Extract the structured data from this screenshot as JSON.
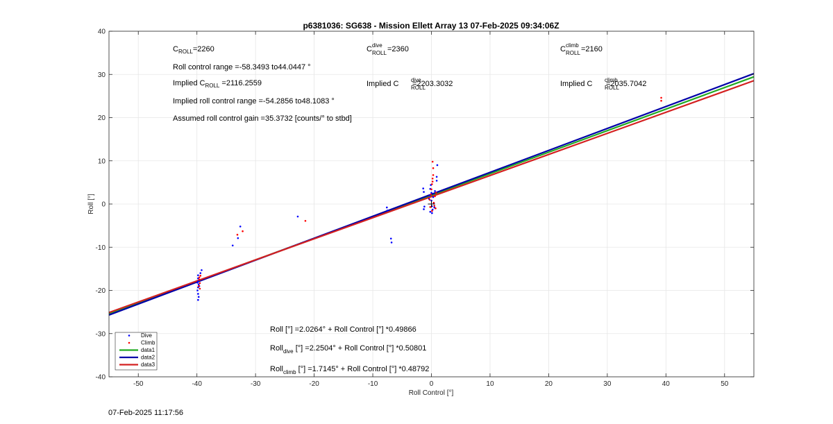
{
  "timestamp": "07-Feb-2025 11:17:56",
  "chart_data": {
    "type": "scatter",
    "title": "p6381036: SG638 - Mission Ellett Array 13 07-Feb-2025 09:34:06Z",
    "xlabel": "Roll Control [°]",
    "ylabel": "Roll [°]",
    "xlim": [
      -55,
      55
    ],
    "ylim": [
      -40,
      40
    ],
    "xticks": [
      -50,
      -40,
      -30,
      -20,
      -10,
      0,
      10,
      20,
      30,
      40,
      50
    ],
    "yticks": [
      -40,
      -30,
      -20,
      -10,
      0,
      10,
      20,
      30,
      40
    ],
    "grid": true,
    "legend": {
      "placement": "bottom-left",
      "entries": [
        {
          "name": "Dive",
          "kind": "marker",
          "color": "#0000ff"
        },
        {
          "name": "Climb",
          "kind": "marker",
          "color": "#ff0000"
        },
        {
          "name": "data1",
          "kind": "line",
          "color": "#22aa22"
        },
        {
          "name": "data2",
          "kind": "line",
          "color": "#0000a8"
        },
        {
          "name": "data3",
          "kind": "line",
          "color": "#d42020"
        }
      ]
    },
    "series": [
      {
        "name": "Dive",
        "color": "#0000ff",
        "points": [
          [
            -39.8,
            -16.5
          ],
          [
            -39.8,
            -17.2
          ],
          [
            -39.8,
            -17.9
          ],
          [
            -39.7,
            -18.6
          ],
          [
            -39.8,
            -19.3
          ],
          [
            -39.9,
            -20.0
          ],
          [
            -39.8,
            -20.8
          ],
          [
            -39.7,
            -21.5
          ],
          [
            -39.8,
            -22.2
          ],
          [
            -39.4,
            -16.0
          ],
          [
            -39.2,
            -15.3
          ],
          [
            -39.6,
            -19.0
          ],
          [
            -39.9,
            -18.2
          ],
          [
            -33.9,
            -9.6
          ],
          [
            -33.0,
            -7.9
          ],
          [
            -32.6,
            -5.2
          ],
          [
            -22.8,
            -2.9
          ],
          [
            -7.6,
            -0.8
          ],
          [
            -7.5,
            -1.5
          ],
          [
            -6.9,
            -8.0
          ],
          [
            -6.8,
            -8.9
          ],
          [
            -1.4,
            3.6
          ],
          [
            -1.3,
            2.8
          ],
          [
            -1.2,
            -0.6
          ],
          [
            -1.3,
            -1.2
          ],
          [
            -0.4,
            1.2
          ],
          [
            -0.3,
            2.0
          ],
          [
            -0.2,
            3.5
          ],
          [
            -0.1,
            4.4
          ],
          [
            0.0,
            2.6
          ],
          [
            0.0,
            0.8
          ],
          [
            0.1,
            -0.5
          ],
          [
            0.2,
            -1.3
          ],
          [
            0.3,
            1.6
          ],
          [
            0.4,
            0.2
          ],
          [
            0.5,
            -0.8
          ],
          [
            0.6,
            3.0
          ],
          [
            0.9,
            5.4
          ],
          [
            0.9,
            6.3
          ],
          [
            1.0,
            9.0
          ],
          [
            -0.2,
            -1.8
          ],
          [
            0.1,
            -2.1
          ]
        ]
      },
      {
        "name": "Climb",
        "color": "#ff0000",
        "points": [
          [
            -39.6,
            -17.5
          ],
          [
            -39.5,
            -18.3
          ],
          [
            -39.7,
            -19.0
          ],
          [
            -39.5,
            -19.6
          ],
          [
            -39.6,
            -17.0
          ],
          [
            -39.4,
            -16.6
          ],
          [
            -33.1,
            -7.1
          ],
          [
            -32.2,
            -6.3
          ],
          [
            -21.5,
            -3.9
          ],
          [
            -0.3,
            1.0
          ],
          [
            -0.1,
            2.2
          ],
          [
            0.0,
            3.4
          ],
          [
            0.1,
            4.6
          ],
          [
            0.2,
            5.2
          ],
          [
            0.2,
            5.9
          ],
          [
            0.3,
            6.7
          ],
          [
            0.3,
            8.3
          ],
          [
            0.2,
            9.8
          ],
          [
            0.4,
            0.3
          ],
          [
            0.5,
            -0.4
          ],
          [
            0.6,
            1.8
          ],
          [
            0.7,
            -1.0
          ],
          [
            0.8,
            2.6
          ],
          [
            -0.2,
            -0.7
          ],
          [
            0.1,
            -1.6
          ],
          [
            39.2,
            24.6
          ],
          [
            39.2,
            23.9
          ]
        ]
      }
    ],
    "fit_lines": [
      {
        "name": "data1",
        "color": "#22aa22",
        "intercept": 2.0264,
        "slope": 0.49866
      },
      {
        "name": "data2",
        "color": "#0000a8",
        "intercept": 2.2504,
        "slope": 0.50801
      },
      {
        "name": "data3",
        "color": "#d42020",
        "intercept": 1.7145,
        "slope": 0.48792
      }
    ],
    "annotations": {
      "c_roll": {
        "pre": "C",
        "sub": "ROLL",
        "post": "=2260"
      },
      "roll_range": "Roll control range =-58.3493 to44.0447 °",
      "implied_c_roll": {
        "pre": "Implied C",
        "sub": "ROLL",
        "post": " =2116.2559"
      },
      "implied_range": "Implied roll control range =-54.2856 to48.1083 °",
      "gain": "Assumed roll control gain =35.3732 [counts/° to stbd]",
      "c_dive": {
        "pre": "C",
        "sup": "dive",
        "sub": "ROLL",
        "post": " =2360"
      },
      "implied_c_dive": {
        "pre": "Implied C",
        "sup": "dive",
        "sub": "ROLL",
        "post": " =2203.3032"
      },
      "c_climb": {
        "pre": "C",
        "sup": "climb",
        "sub": "ROLL",
        "post": " =2160"
      },
      "implied_c_climb": {
        "pre": "Implied C",
        "sup": "climb",
        "sub": "ROLL",
        "post": " =2035.7042"
      },
      "eq_all": "Roll [°] =2.0264° + Roll Control [°] *0.49866",
      "eq_dive": {
        "pre": "Roll",
        "sub": "dive",
        "post": " [°] =2.2504° + Roll Control [°] *0.50801"
      },
      "eq_climb": {
        "pre": "Roll",
        "sub": "climb",
        "post": " [°] =1.7145° + Roll Control [°] *0.48792"
      }
    }
  }
}
